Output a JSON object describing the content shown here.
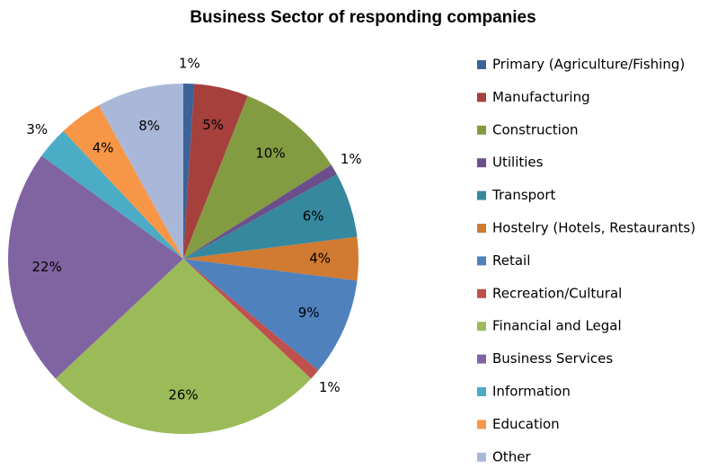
{
  "chart_data": {
    "type": "pie",
    "title": "Business Sector of responding companies",
    "categories": [
      "Primary (Agriculture/Fishing)",
      "Manufacturing",
      "Construction",
      "Utilities",
      "Transport",
      "Hostelry (Hotels, Restaurants)",
      "Retail",
      "Recreation/Cultural",
      "Financial and Legal",
      "Business Services",
      "Information",
      "Education",
      "Other"
    ],
    "values": [
      1,
      5,
      10,
      1,
      6,
      4,
      9,
      1,
      26,
      22,
      3,
      4,
      8
    ],
    "value_labels": [
      "1%",
      "5%",
      "10%",
      "1%",
      "6%",
      "4%",
      "9%",
      "1%",
      "26%",
      "22%",
      "3%",
      "4%",
      "8%"
    ],
    "colors": [
      "#3C6397",
      "#A5403D",
      "#839C41",
      "#6B4F8C",
      "#35889E",
      "#D07A32",
      "#4F81BD",
      "#C0504D",
      "#9BBB59",
      "#8064A2",
      "#4BACC6",
      "#F79646",
      "#A9B8D8"
    ],
    "legend": "right"
  }
}
